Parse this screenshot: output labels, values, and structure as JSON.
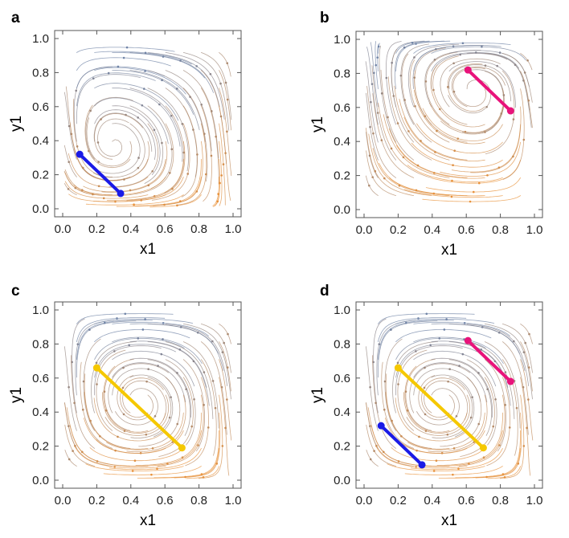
{
  "chart_data": [
    {
      "panel": "a",
      "type": "stream",
      "xlabel": "x1",
      "ylabel": "y1",
      "xlim": [
        0,
        1
      ],
      "ylim": [
        0,
        1
      ],
      "xticks": [
        "0.0",
        "0.2",
        "0.4",
        "0.6",
        "0.8",
        "1.0"
      ],
      "yticks": [
        "0.0",
        "0.2",
        "0.4",
        "0.6",
        "0.8",
        "1.0"
      ],
      "field": {
        "px": 0.3,
        "py": 0.35
      },
      "trajectories": [
        {
          "color": "#1a1ae6",
          "points": [
            [
              0.1,
              0.32
            ],
            [
              0.34,
              0.09
            ]
          ]
        }
      ]
    },
    {
      "panel": "b",
      "type": "stream",
      "xlabel": "x1",
      "ylabel": "y1",
      "xlim": [
        0,
        1
      ],
      "ylim": [
        0,
        1
      ],
      "xticks": [
        "0.0",
        "0.2",
        "0.4",
        "0.6",
        "0.8",
        "1.0"
      ],
      "yticks": [
        "0.0",
        "0.2",
        "0.4",
        "0.6",
        "0.8",
        "1.0"
      ],
      "field": {
        "px": 0.65,
        "py": 0.72
      },
      "trajectories": [
        {
          "color": "#e8137a",
          "points": [
            [
              0.61,
              0.82
            ],
            [
              0.86,
              0.58
            ]
          ]
        }
      ]
    },
    {
      "panel": "c",
      "type": "stream",
      "xlabel": "x1",
      "ylabel": "y1",
      "xlim": [
        0,
        1
      ],
      "ylim": [
        0,
        1
      ],
      "xticks": [
        "0.0",
        "0.2",
        "0.4",
        "0.6",
        "0.8",
        "1.0"
      ],
      "yticks": [
        "0.0",
        "0.2",
        "0.4",
        "0.6",
        "0.8",
        "1.0"
      ],
      "field": {
        "px": 0.45,
        "py": 0.45
      },
      "trajectories": [
        {
          "color": "#f5c800",
          "points": [
            [
              0.2,
              0.66
            ],
            [
              0.7,
              0.19
            ]
          ]
        }
      ]
    },
    {
      "panel": "d",
      "type": "stream",
      "xlabel": "x1",
      "ylabel": "y1",
      "xlim": [
        0,
        1
      ],
      "ylim": [
        0,
        1
      ],
      "xticks": [
        "0.0",
        "0.2",
        "0.4",
        "0.6",
        "0.8",
        "1.0"
      ],
      "yticks": [
        "0.0",
        "0.2",
        "0.4",
        "0.6",
        "0.8",
        "1.0"
      ],
      "field": {
        "px": 0.45,
        "py": 0.45
      },
      "trajectories": [
        {
          "color": "#e8137a",
          "points": [
            [
              0.61,
              0.82
            ],
            [
              0.86,
              0.58
            ]
          ]
        },
        {
          "color": "#f5c800",
          "points": [
            [
              0.2,
              0.66
            ],
            [
              0.7,
              0.19
            ]
          ]
        },
        {
          "color": "#1a1ae6",
          "points": [
            [
              0.1,
              0.32
            ],
            [
              0.34,
              0.09
            ]
          ]
        }
      ]
    }
  ],
  "colors": {
    "stream_blue": "#6f83a6",
    "stream_orange": "#e8913a",
    "frame": "#555555"
  }
}
